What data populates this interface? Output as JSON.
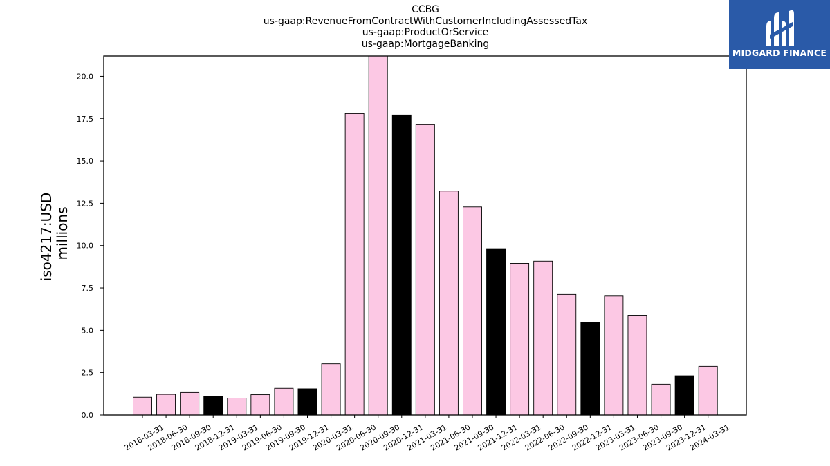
{
  "chart_data": {
    "type": "bar",
    "title_lines": [
      "CCBG",
      "us-gaap:RevenueFromContractWithCustomerIncludingAssessedTax",
      "us-gaap:ProductOrService",
      "us-gaap:MortgageBanking"
    ],
    "ylabel_lines": [
      "iso4217:USD",
      "millions"
    ],
    "xlabel": "",
    "ylim": [
      0,
      21.2
    ],
    "yticks": [
      0.0,
      2.5,
      5.0,
      7.5,
      10.0,
      12.5,
      15.0,
      17.5,
      20.0
    ],
    "ytick_labels": [
      "0.0",
      "2.5",
      "5.0",
      "7.5",
      "10.0",
      "12.5",
      "15.0",
      "17.5",
      "20.0"
    ],
    "categories": [
      "2018-03-31",
      "2018-06-30",
      "2018-09-30",
      "2018-12-31",
      "2019-03-31",
      "2019-06-30",
      "2019-09-30",
      "2019-12-31",
      "2020-03-31",
      "2020-06-30",
      "2020-09-30",
      "2020-12-31",
      "2021-03-31",
      "2021-06-30",
      "2021-09-30",
      "2021-12-31",
      "2022-03-31",
      "2022-06-30",
      "2022-09-30",
      "2022-12-31",
      "2023-03-31",
      "2023-06-30",
      "2023-09-30",
      "2023-12-31",
      "2024-03-31"
    ],
    "values": [
      1.05,
      1.22,
      1.33,
      1.12,
      1.0,
      1.2,
      1.58,
      1.55,
      3.03,
      17.8,
      21.4,
      17.72,
      17.15,
      13.22,
      12.28,
      9.82,
      8.95,
      9.08,
      7.12,
      5.48,
      7.02,
      5.85,
      1.82,
      2.32,
      2.88
    ],
    "bar_colors": [
      "#fcc8e4",
      "#fcc8e4",
      "#fcc8e4",
      "#000000",
      "#fcc8e4",
      "#fcc8e4",
      "#fcc8e4",
      "#000000",
      "#fcc8e4",
      "#fcc8e4",
      "#fcc8e4",
      "#000000",
      "#fcc8e4",
      "#fcc8e4",
      "#fcc8e4",
      "#000000",
      "#fcc8e4",
      "#fcc8e4",
      "#fcc8e4",
      "#000000",
      "#fcc8e4",
      "#fcc8e4",
      "#fcc8e4",
      "#000000",
      "#fcc8e4"
    ],
    "colors": {
      "default_bar": "#fcc8e4",
      "year_end_bar": "#000000",
      "edge": "#000000"
    },
    "grid": false,
    "legend": "none"
  },
  "logo": {
    "text": "MIDGARD FINANCE",
    "background": "#2a5aa8",
    "icon": "midgard-logo-icon"
  }
}
